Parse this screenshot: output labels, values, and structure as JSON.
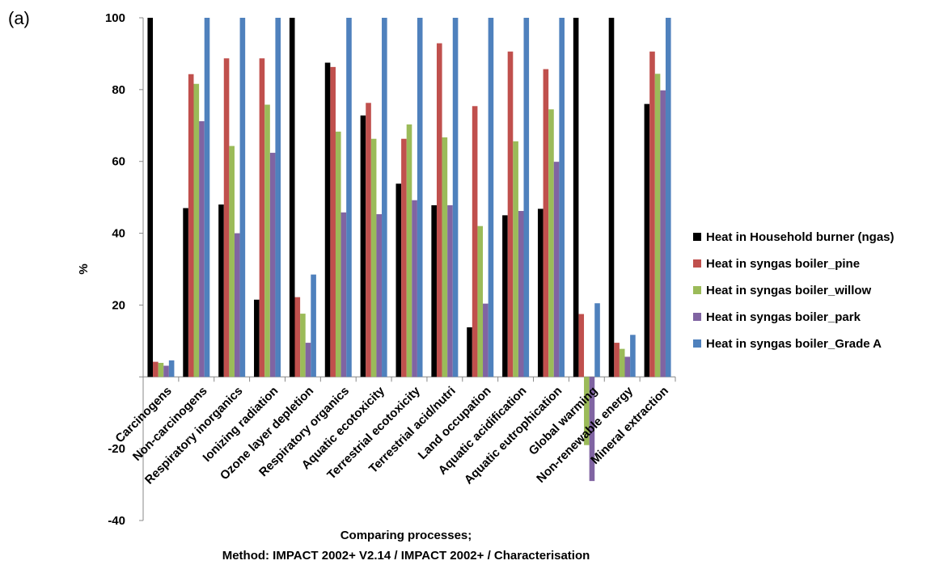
{
  "panel_label": "(a)",
  "chart_data": {
    "type": "bar",
    "categories": [
      "Carcinogens",
      "Non-carcinogens",
      "Respiratory inorganics",
      "Ionizing radiation",
      "Ozone layer depletion",
      "Respiratory organics",
      "Aquatic ecotoxicity",
      "Terrestrial ecotoxicity",
      "Terrestrial acid/nutri",
      "Land occupation",
      "Aquatic acidification",
      "Aquatic eutrophication",
      "Global warming",
      "Non-renewable energy",
      "Mineral extraction"
    ],
    "series": [
      {
        "name": "Heat in Household burner (ngas)",
        "color": "#000000",
        "values": [
          100,
          47,
          48,
          21.5,
          100,
          87.5,
          72.8,
          53.8,
          47.8,
          13.8,
          45,
          46.8,
          100,
          100,
          76
        ]
      },
      {
        "name": "Heat in syngas boiler_pine",
        "color": "#c0504d",
        "values": [
          4.2,
          84.3,
          88.7,
          88.7,
          22.2,
          86.3,
          76.3,
          66.3,
          92.9,
          75.4,
          90.6,
          85.7,
          17.5,
          9.5,
          90.6
        ]
      },
      {
        "name": "Heat in syngas boiler_willow",
        "color": "#9bbb59",
        "values": [
          3.9,
          81.6,
          64.3,
          75.8,
          17.6,
          68.3,
          66.3,
          70.3,
          66.7,
          42,
          65.6,
          74.5,
          -19,
          7.8,
          84.4
        ]
      },
      {
        "name": "Heat in syngas boiler_park",
        "color": "#8064a2",
        "values": [
          3.1,
          71.2,
          40,
          62.4,
          9.5,
          45.8,
          45.3,
          49.2,
          47.8,
          20.4,
          46.2,
          59.9,
          -29,
          5.6,
          79.8
        ]
      },
      {
        "name": "Heat in syngas boiler_Grade A",
        "color": "#4f81bd",
        "values": [
          4.6,
          100,
          100,
          100,
          28.5,
          100,
          100,
          100,
          100,
          100,
          100,
          100,
          20.5,
          11.7,
          100
        ]
      }
    ],
    "ylim": [
      -40,
      100
    ],
    "yticks": [
      "-40",
      "-20",
      "",
      "20",
      "40",
      "60",
      "80",
      "100"
    ],
    "ytick_values": [
      -40,
      -20,
      0,
      20,
      40,
      60,
      80,
      100
    ],
    "ylabel": "%",
    "xlabel_line1": "Comparing processes;",
    "xlabel_line2": "Method: IMPACT 2002+ V2.14 / IMPACT 2002+ / Characterisation",
    "legend_position": "right",
    "grid": false
  }
}
